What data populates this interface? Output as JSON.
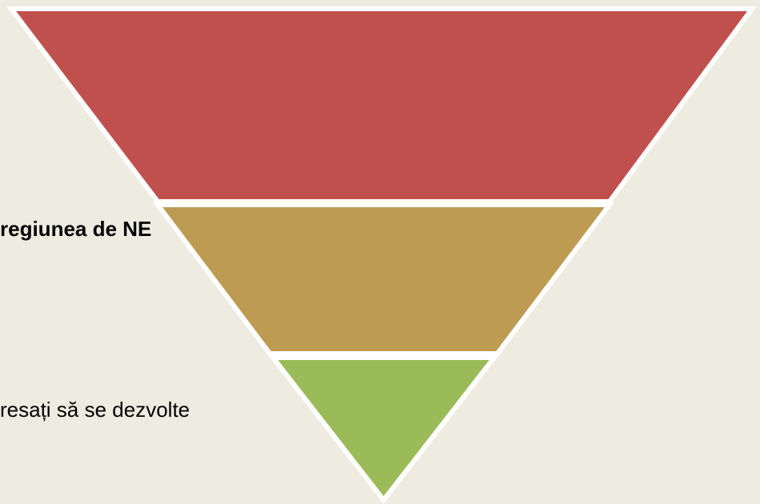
{
  "items": [
    "regiunea de NE",
    "resați să se dezvolte"
  ]
}
